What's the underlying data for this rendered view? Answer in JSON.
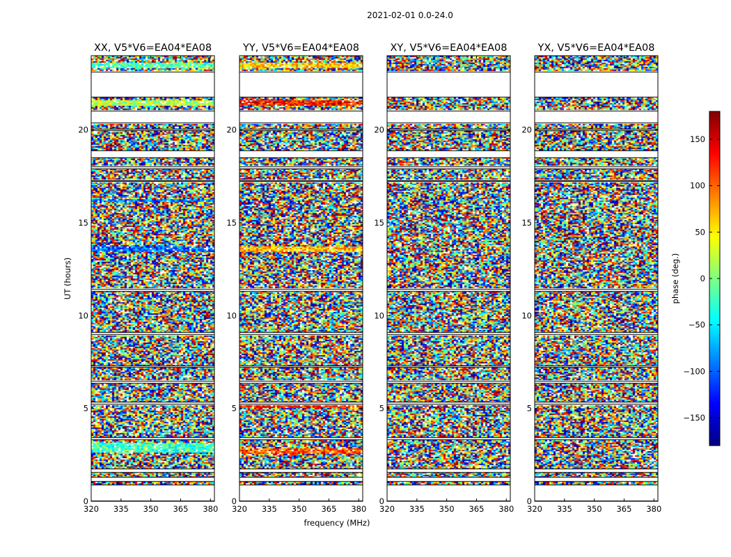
{
  "figure": {
    "suptitle": "2021-02-01 0.0-24.0",
    "xlabel": "frequency (MHz)",
    "ylabel": "UT (hours)"
  },
  "colorbar": {
    "label": "phase (deg.)",
    "range": [
      -180,
      180
    ],
    "ticks": [
      150,
      100,
      50,
      0,
      -50,
      -100,
      -150
    ],
    "tick_labels": [
      "150",
      "100",
      "50",
      "0",
      "−50",
      "−100",
      "−150"
    ],
    "colormap": [
      "#000080",
      "#0000ff",
      "#0080ff",
      "#00ffff",
      "#80ff80",
      "#ffff00",
      "#ff8000",
      "#ff0000",
      "#800000"
    ]
  },
  "chart_data": {
    "type": "heatmap",
    "x": {
      "range": [
        320,
        382
      ],
      "ticks": [
        320,
        335,
        350,
        365,
        380
      ],
      "tick_labels": [
        "320",
        "335",
        "350",
        "365",
        "380"
      ]
    },
    "y": {
      "range": [
        0,
        24
      ],
      "ticks": [
        0,
        5,
        10,
        15,
        20
      ],
      "tick_labels": [
        "0",
        "5",
        "10",
        "15",
        "20"
      ]
    },
    "empty_bands_hours": [
      [
        0.0,
        0.9
      ],
      [
        1.05,
        1.3
      ],
      [
        1.55,
        1.75
      ],
      [
        3.3,
        3.45
      ],
      [
        5.2,
        5.35
      ],
      [
        6.35,
        6.5
      ],
      [
        7.2,
        7.3
      ],
      [
        8.95,
        9.1
      ],
      [
        11.3,
        11.45
      ],
      [
        17.2,
        17.3
      ],
      [
        17.9,
        18.05
      ],
      [
        18.5,
        18.9
      ],
      [
        19.95,
        20.05
      ],
      [
        20.35,
        21.05
      ],
      [
        21.75,
        23.15
      ]
    ],
    "panels": [
      {
        "title": "XX, V5*V6=EA04*EA08",
        "polarization": "XX",
        "coherent_bands": [
          {
            "t0": 2.6,
            "t1": 3.15,
            "phase": -20
          },
          {
            "t0": 13.4,
            "t1": 13.75,
            "phase": -95
          },
          {
            "t0": 16.15,
            "t1": 16.3,
            "phase": -90
          },
          {
            "t0": 23.35,
            "t1": 23.65,
            "phase": -15
          },
          {
            "t0": 21.3,
            "t1": 21.6,
            "phase": 20
          }
        ]
      },
      {
        "title": "YY, V5*V6=EA04*EA08",
        "polarization": "YY",
        "coherent_bands": [
          {
            "t0": 2.55,
            "t1": 2.85,
            "phase": 110
          },
          {
            "t0": 5.0,
            "t1": 5.15,
            "phase": 120
          },
          {
            "t0": 13.4,
            "t1": 13.75,
            "phase": 70
          },
          {
            "t0": 21.3,
            "t1": 21.6,
            "phase": 130
          },
          {
            "t0": 23.35,
            "t1": 23.65,
            "phase": 60
          }
        ]
      },
      {
        "title": "XY, V5*V6=EA04*EA08",
        "polarization": "XY",
        "coherent_bands": []
      },
      {
        "title": "YX, V5*V6=EA04*EA08",
        "polarization": "YX",
        "coherent_bands": []
      }
    ]
  }
}
